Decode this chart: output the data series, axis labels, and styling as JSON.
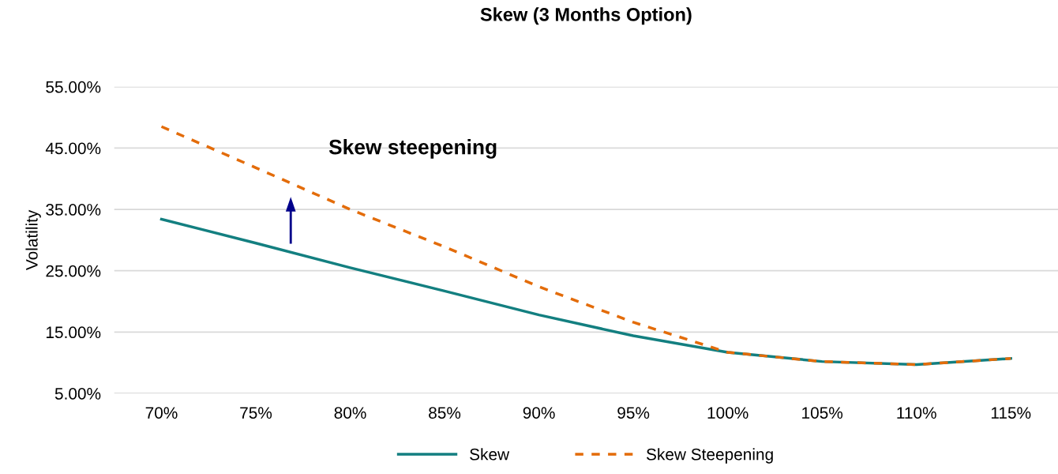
{
  "chart_data": {
    "type": "line",
    "title": "Skew (3 Months Option)",
    "ylabel": "Volatility",
    "categories": [
      "70%",
      "75%",
      "80%",
      "85%",
      "90%",
      "95%",
      "100%",
      "105%",
      "110%",
      "115%"
    ],
    "series": [
      {
        "name": "Skew",
        "color": "#137f80",
        "line_style": "solid",
        "values": [
          33.4,
          29.5,
          25.5,
          21.7,
          17.8,
          14.4,
          11.7,
          10.2,
          9.7,
          10.7
        ]
      },
      {
        "name": "Skew Steepening",
        "color": "#e36c0a",
        "line_style": "dashed",
        "values": [
          48.5,
          41.8,
          35.0,
          28.9,
          22.4,
          16.6,
          11.7,
          10.2,
          9.7,
          10.7
        ]
      }
    ],
    "ylim": [
      5,
      55
    ],
    "yticks": [
      {
        "value": 5,
        "label": "5.00%"
      },
      {
        "value": 15,
        "label": "15.00%"
      },
      {
        "value": 25,
        "label": "25.00%"
      },
      {
        "value": 35,
        "label": "35.00%"
      },
      {
        "value": 45,
        "label": "45.00%"
      },
      {
        "value": 55,
        "label": "55.00%"
      }
    ],
    "grid": "y",
    "legend": "bottom",
    "marker": "none",
    "annotations": [
      "Skew steepening"
    ]
  }
}
